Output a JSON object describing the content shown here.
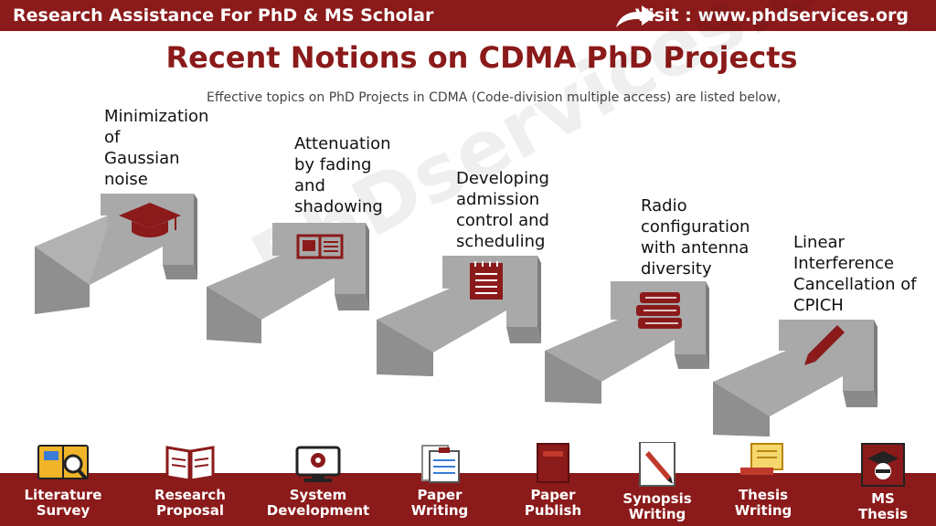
{
  "header": {
    "left_text": "Research Assistance For PhD & MS Scholar",
    "right_text": "Visit : www.phdservices.org",
    "brand_color": "#8b1a1a"
  },
  "title": "Recent Notions on CDMA PhD Projects",
  "subtitle": "Effective topics on PhD Projects in CDMA (Code-division multiple access) are listed below,",
  "watermark": "PhDservices.org",
  "steps": [
    {
      "lines": [
        "Minimization",
        "of",
        "Gaussian",
        "noise"
      ],
      "icon": "graduation-cap-icon"
    },
    {
      "lines": [
        "Attenuation",
        "by fading",
        "and",
        "shadowing"
      ],
      "icon": "open-book-icon"
    },
    {
      "lines": [
        "Developing",
        "admission",
        "control and",
        "scheduling"
      ],
      "icon": "notepad-icon"
    },
    {
      "lines": [
        "Radio",
        "configuration",
        "with antenna",
        "diversity"
      ],
      "icon": "books-stack-icon"
    },
    {
      "lines": [
        "Linear",
        "Interference",
        "Cancellation of",
        "CPICH"
      ],
      "icon": "pencil-icon"
    }
  ],
  "services": [
    {
      "lines": [
        "Literature",
        "Survey"
      ],
      "icon": "magnifier-icon"
    },
    {
      "lines": [
        "Research",
        "Proposal"
      ],
      "icon": "open-book-icon"
    },
    {
      "lines": [
        "System",
        "Development"
      ],
      "icon": "monitor-icon"
    },
    {
      "lines": [
        "Paper",
        "Writing"
      ],
      "icon": "clipboard-icon"
    },
    {
      "lines": [
        "Paper",
        "Publish"
      ],
      "icon": "book-icon"
    },
    {
      "lines": [
        "Synopsis",
        "Writing"
      ],
      "icon": "pen-paper-icon"
    },
    {
      "lines": [
        "Thesis",
        "Writing"
      ],
      "icon": "scroll-icon"
    },
    {
      "lines": [
        "MS",
        "Thesis"
      ],
      "icon": "graduate-icon"
    }
  ]
}
